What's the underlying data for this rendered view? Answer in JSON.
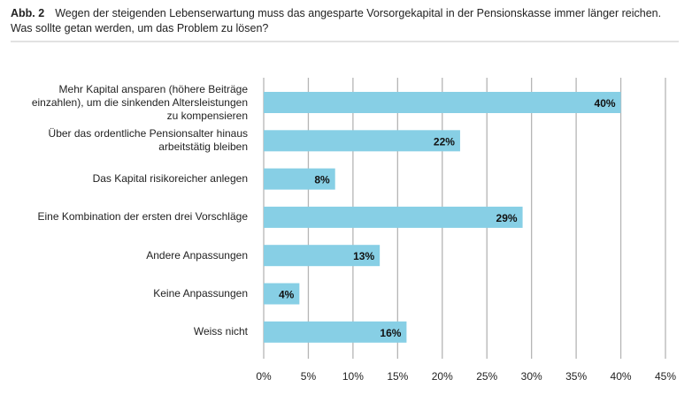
{
  "header": {
    "figure_label": "Abb. 2",
    "title_line1": "Wegen der steigenden Lebenserwartung muss das angesparte Vorsorgekapital in der Pensionskasse immer länger reichen.",
    "title_line2": "Was sollte getan werden, um das Problem zu lösen?"
  },
  "chart_data": {
    "type": "bar",
    "orientation": "horizontal",
    "categories": [
      "Mehr Kapital ansparen (höhere Beiträge\neinzahlen), um die sinkenden Altersleistungen\nzu kompensieren",
      "Über das ordentliche Pensionsalter hinaus\narbeitstätig bleiben",
      "Das Kapital risikoreicher anlegen",
      "Eine Kombination der ersten drei Vorschläge",
      "Andere Anpassungen",
      "Keine Anpassungen",
      "Weiss nicht"
    ],
    "values": [
      40,
      22,
      8,
      29,
      13,
      4,
      16
    ],
    "data_labels": [
      "40%",
      "22%",
      "8%",
      "29%",
      "13%",
      "4%",
      "16%"
    ],
    "xlim": [
      0,
      45
    ],
    "x_ticks": [
      "0%",
      "5%",
      "10%",
      "15%",
      "20%",
      "25%",
      "30%",
      "35%",
      "40%",
      "45%"
    ],
    "grid": "vertical",
    "bar_color": "#87cfe5",
    "grid_color": "#b5b5b5"
  }
}
